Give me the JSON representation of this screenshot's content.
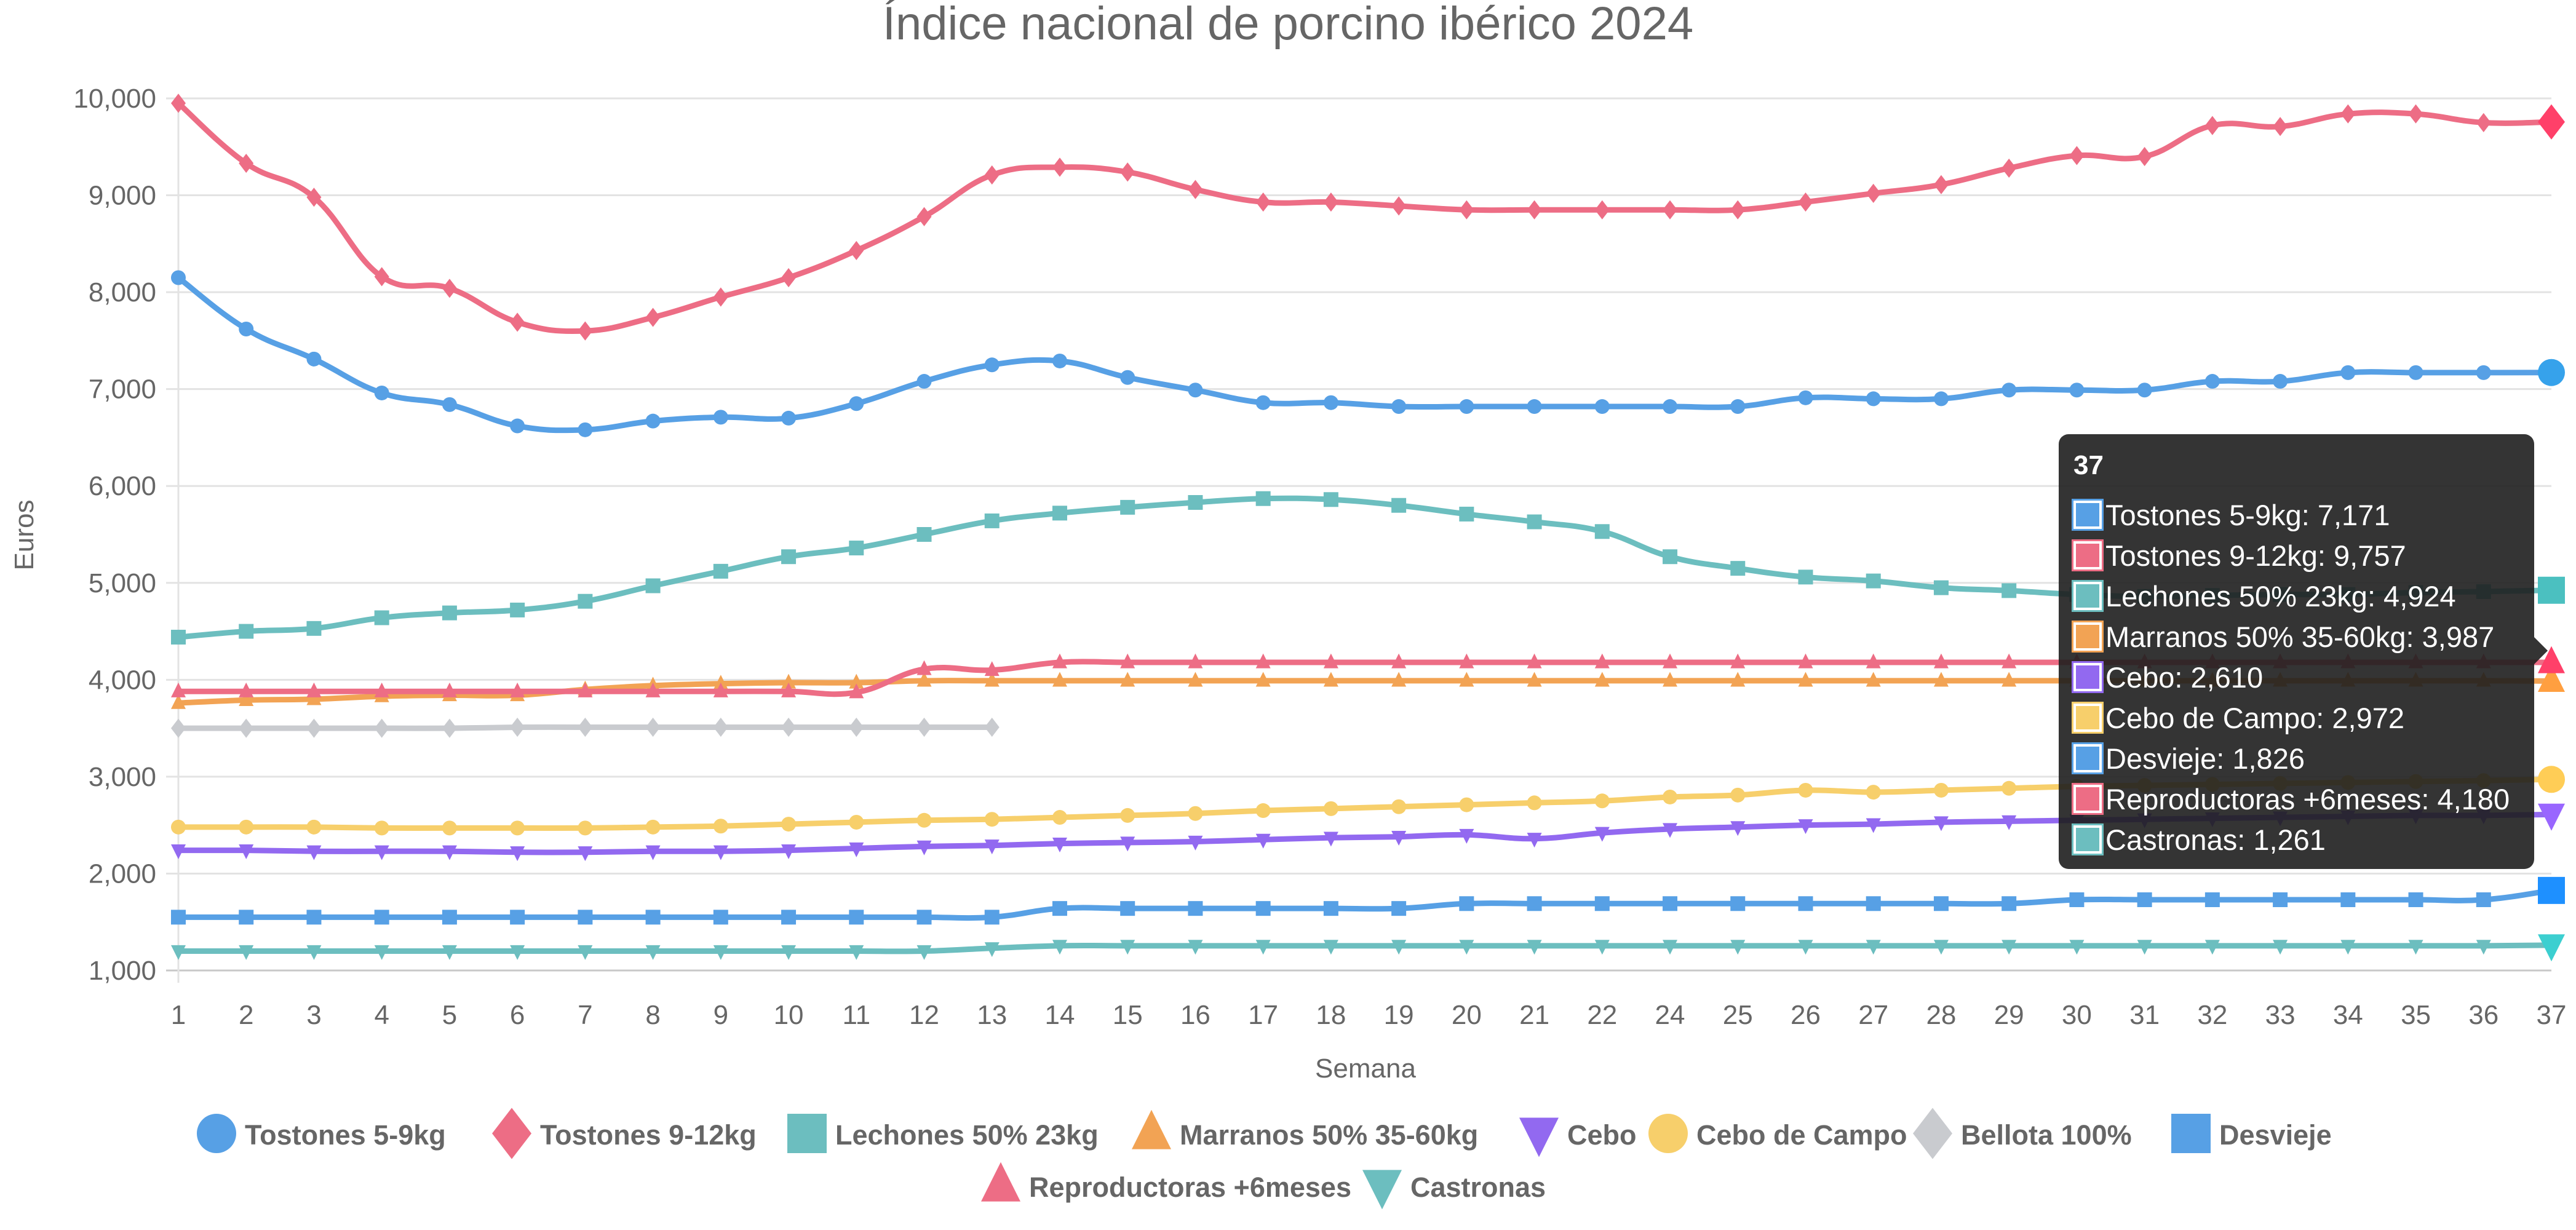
{
  "chart_data": {
    "type": "line",
    "title": "Índice nacional de porcino ibérico 2024",
    "xlabel": "Semana",
    "ylabel": "Euros",
    "ylim": [
      1000,
      10000
    ],
    "yticks": [
      "1,000",
      "2,000",
      "3,000",
      "4,000",
      "5,000",
      "6,000",
      "7,000",
      "8,000",
      "9,000",
      "10,000"
    ],
    "ytick_values": [
      1000,
      2000,
      3000,
      4000,
      5000,
      6000,
      7000,
      8000,
      9000,
      10000
    ],
    "grid": true,
    "legend_position": "bottom",
    "categories": [
      "1",
      "2",
      "3",
      "4",
      "5",
      "6",
      "7",
      "8",
      "9",
      "10",
      "11",
      "12",
      "13",
      "14",
      "15",
      "16",
      "17",
      "18",
      "19",
      "20",
      "21",
      "22",
      "24",
      "25",
      "26",
      "27",
      "28",
      "29",
      "30",
      "31",
      "32",
      "33",
      "34",
      "35",
      "36",
      "37"
    ],
    "series": [
      {
        "name": "Tostones 5-9kg",
        "color": "#57a0e5",
        "marker": "circle",
        "values": [
          8150,
          7620,
          7310,
          6960,
          6840,
          6620,
          6580,
          6670,
          6710,
          6700,
          6850,
          7080,
          7250,
          7290,
          7120,
          6990,
          6860,
          6860,
          6820,
          6820,
          6820,
          6820,
          6820,
          6820,
          6910,
          6900,
          6900,
          6990,
          6990,
          6990,
          7080,
          7080,
          7170,
          7170,
          7170,
          7171
        ]
      },
      {
        "name": "Tostones 9-12kg",
        "color": "#ed6d85",
        "marker": "diamond",
        "values": [
          9950,
          9330,
          8980,
          8160,
          8040,
          7690,
          7600,
          7740,
          7950,
          8150,
          8430,
          8780,
          9210,
          9290,
          9240,
          9060,
          8930,
          8930,
          8890,
          8850,
          8850,
          8850,
          8850,
          8850,
          8930,
          9020,
          9110,
          9280,
          9410,
          9400,
          9720,
          9710,
          9840,
          9840,
          9750,
          9757
        ]
      },
      {
        "name": "Lechones 50% 23kg",
        "color": "#6cbebf",
        "marker": "square",
        "values": [
          4440,
          4500,
          4530,
          4640,
          4690,
          4720,
          4810,
          4970,
          5120,
          5270,
          5360,
          5500,
          5640,
          5720,
          5780,
          5830,
          5870,
          5860,
          5800,
          5710,
          5630,
          5530,
          5270,
          5150,
          5060,
          5020,
          4950,
          4920,
          4880,
          4860,
          4870,
          4880,
          4880,
          4900,
          4910,
          4924
        ]
      },
      {
        "name": "Marranos 50% 35-60kg",
        "color": "#f2a354",
        "marker": "triangle",
        "values": [
          3760,
          3790,
          3800,
          3830,
          3840,
          3840,
          3900,
          3940,
          3960,
          3970,
          3970,
          3990,
          3990,
          3990,
          3990,
          3990,
          3990,
          3990,
          3990,
          3990,
          3990,
          3990,
          3990,
          3990,
          3990,
          3990,
          3990,
          3990,
          3990,
          3990,
          3990,
          3990,
          3990,
          3990,
          3990,
          3987
        ]
      },
      {
        "name": "Cebo",
        "color": "#9269f0",
        "marker": "triangle-down",
        "values": [
          2240,
          2240,
          2230,
          2230,
          2230,
          2220,
          2220,
          2230,
          2230,
          2240,
          2260,
          2280,
          2290,
          2310,
          2320,
          2330,
          2350,
          2370,
          2380,
          2400,
          2360,
          2420,
          2460,
          2480,
          2500,
          2510,
          2530,
          2540,
          2550,
          2560,
          2570,
          2580,
          2590,
          2600,
          2600,
          2610
        ]
      },
      {
        "name": "Cebo de Campo",
        "color": "#f7cf6b",
        "marker": "circle",
        "values": [
          2480,
          2480,
          2480,
          2470,
          2470,
          2470,
          2470,
          2480,
          2490,
          2510,
          2530,
          2550,
          2560,
          2580,
          2600,
          2620,
          2650,
          2670,
          2690,
          2710,
          2730,
          2750,
          2790,
          2810,
          2860,
          2840,
          2860,
          2880,
          2900,
          2910,
          2920,
          2930,
          2940,
          2950,
          2960,
          2972
        ]
      },
      {
        "name": "Bellota 100%",
        "color": "#c9cbcf",
        "marker": "diamond",
        "values": [
          3500,
          3500,
          3500,
          3500,
          3500,
          3510,
          3510,
          3510,
          3510,
          3510,
          3510,
          3510,
          3510,
          null,
          null,
          null,
          null,
          null,
          null,
          null,
          null,
          null,
          null,
          null,
          null,
          null,
          null,
          null,
          null,
          null,
          null,
          null,
          null,
          null,
          null,
          null
        ]
      },
      {
        "name": "Desvieje",
        "color": "#57a0e5",
        "marker": "square",
        "values": [
          1550,
          1550,
          1550,
          1550,
          1550,
          1550,
          1550,
          1550,
          1550,
          1550,
          1550,
          1550,
          1550,
          1640,
          1640,
          1640,
          1640,
          1640,
          1640,
          1690,
          1690,
          1690,
          1690,
          1690,
          1690,
          1690,
          1690,
          1690,
          1730,
          1730,
          1730,
          1730,
          1730,
          1730,
          1730,
          1826
        ]
      },
      {
        "name": "Reproductoras +6meses",
        "color": "#ed6d85",
        "marker": "triangle",
        "values": [
          3880,
          3880,
          3880,
          3880,
          3880,
          3880,
          3880,
          3880,
          3880,
          3880,
          3870,
          4110,
          4100,
          4180,
          4180,
          4180,
          4180,
          4180,
          4180,
          4180,
          4180,
          4180,
          4180,
          4180,
          4180,
          4180,
          4180,
          4180,
          4180,
          4180,
          4180,
          4180,
          4180,
          4180,
          4180,
          4180
        ]
      },
      {
        "name": "Castronas",
        "color": "#6cbebf",
        "marker": "triangle-down",
        "values": [
          1200,
          1200,
          1200,
          1200,
          1200,
          1200,
          1200,
          1200,
          1200,
          1200,
          1200,
          1200,
          1230,
          1255,
          1255,
          1255,
          1255,
          1255,
          1255,
          1255,
          1255,
          1255,
          1255,
          1255,
          1255,
          1255,
          1255,
          1255,
          1255,
          1255,
          1255,
          1255,
          1255,
          1255,
          1255,
          1261
        ]
      }
    ],
    "hover_colors": [
      "#36a2eb",
      "#ff4069",
      "#4bc0c0",
      "#ff9f40",
      "#9966ff",
      "#ffcd56",
      "#c9cbcf",
      "#1e90ff",
      "#ff4069",
      "#3ccfd0"
    ]
  },
  "tooltip": {
    "title": "37",
    "rows": [
      {
        "label": "Tostones 5-9kg: 7,171",
        "color": "#57a0e5"
      },
      {
        "label": "Tostones 9-12kg: 9,757",
        "color": "#ed6d85"
      },
      {
        "label": "Lechones 50% 23kg: 4,924",
        "color": "#6cbebf"
      },
      {
        "label": "Marranos 50% 35-60kg: 3,987",
        "color": "#f2a354"
      },
      {
        "label": "Cebo: 2,610",
        "color": "#9269f0"
      },
      {
        "label": "Cebo de Campo: 2,972",
        "color": "#f7cf6b"
      },
      {
        "label": "Desvieje: 1,826",
        "color": "#57a0e5"
      },
      {
        "label": "Reproductoras +6meses: 4,180",
        "color": "#ed6d85"
      },
      {
        "label": "Castronas: 1,261",
        "color": "#6cbebf"
      }
    ]
  }
}
